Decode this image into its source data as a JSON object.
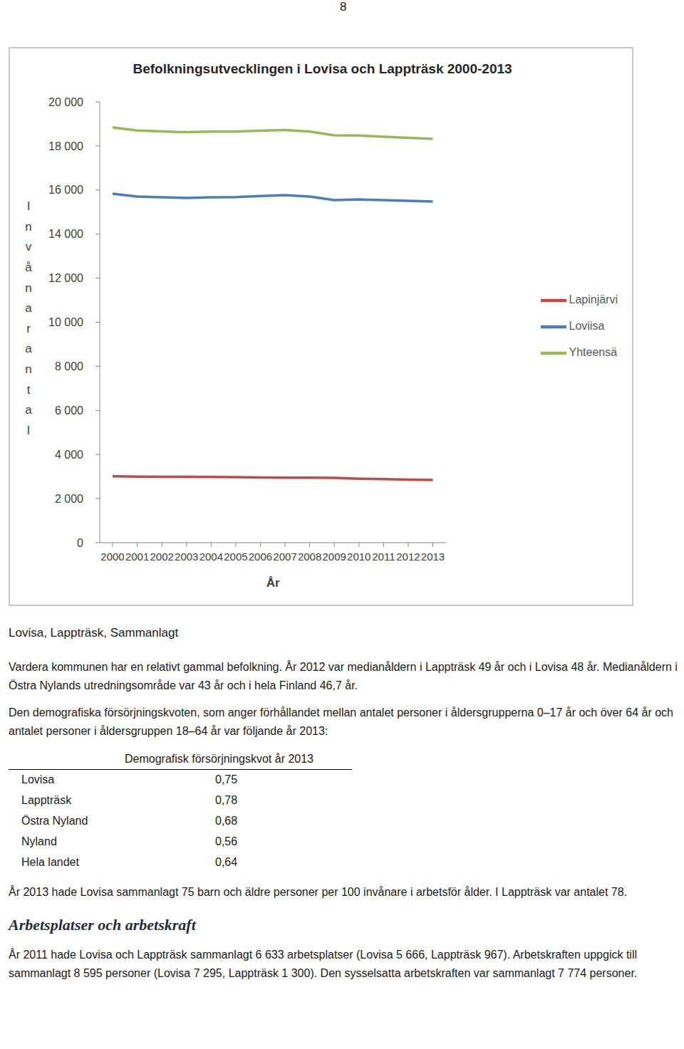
{
  "page_number": "8",
  "chart_data": {
    "type": "line",
    "title": "Befolkningsutvecklingen i Lovisa och Lappträsk 2000-2013",
    "x_label": "År",
    "y_label": "Invånarantal",
    "categories": [
      "2000",
      "2001",
      "2002",
      "2003",
      "2004",
      "2005",
      "2006",
      "2007",
      "2008",
      "2009",
      "2010",
      "2011",
      "2012",
      "2013"
    ],
    "series": [
      {
        "name": "Loviisa",
        "color": "#4a7ebb",
        "values": [
          15830,
          15700,
          15670,
          15640,
          15670,
          15680,
          15730,
          15770,
          15700,
          15540,
          15570,
          15540,
          15510,
          15480
        ]
      },
      {
        "name": "Lapinjärvi",
        "color": "#be4b48",
        "values": [
          3010,
          3000,
          2990,
          2985,
          2980,
          2970,
          2960,
          2950,
          2950,
          2940,
          2900,
          2880,
          2860,
          2840
        ]
      },
      {
        "name": "Yhteensä",
        "color": "#98b954",
        "values": [
          18840,
          18700,
          18660,
          18625,
          18650,
          18650,
          18690,
          18720,
          18650,
          18480,
          18470,
          18420,
          18370,
          18320
        ]
      }
    ],
    "ylim": [
      0,
      20000
    ],
    "yticks": [
      0,
      {
        "value": 2000,
        "label": "2 000"
      },
      {
        "value": 4000,
        "label": "4 000"
      },
      {
        "value": 6000,
        "label": "6 000"
      },
      {
        "value": 8000,
        "label": "8 000"
      },
      {
        "value": 10000,
        "label": "10 000"
      },
      {
        "value": 12000,
        "label": "12 000"
      },
      {
        "value": 14000,
        "label": "14 000"
      },
      {
        "value": 16000,
        "label": "16 000"
      },
      {
        "value": 18000,
        "label": "18 000"
      },
      {
        "value": 20000,
        "label": "20 000"
      }
    ],
    "grid": false,
    "legend": "right"
  },
  "caption": "Lovisa, Lappträsk, Sammanlagt",
  "paragraphs": [
    "Vardera kommunen har en relativt gammal befolkning. År 2012 var medianåldern i Lappträsk 49 år och i Lovisa 48 år. Medianåldern i Östra Nylands utredningsområde var 43 år och i hela Finland 46,7 år.",
    "Den demografiska försörjningskvoten, som anger förhållandet mellan antalet personer i åldersgrupperna 0–17 år och över 64 år och antalet personer i åldersgruppen 18–64 år var följande år 2013:"
  ],
  "table": {
    "header": "Demografisk försörjningskvot år 2013",
    "rows": [
      [
        "Lovisa",
        "0,75"
      ],
      [
        "Lappträsk",
        "0,78"
      ],
      [
        "Östra Nyland",
        "0,68"
      ],
      [
        "Nyland",
        "0,56"
      ],
      [
        "Hela landet",
        "0,64"
      ]
    ]
  },
  "paragraph_after_table": "År 2013 hade Lovisa sammanlagt 75 barn och äldre personer per 100 invånare i arbetsför ålder. I Lappträsk var antalet 78.",
  "heading": "Arbetsplatser och arbetskraft",
  "final_paragraph": "År 2011 hade Lovisa och Lappträsk sammanlagt 6 633 arbetsplatser (Lovisa 5 666, Lappträsk 967). Arbetskraften uppgick till sammanlagt 8 595 personer (Lovisa 7 295, Lappträsk 1 300). Den sysselsatta arbetskraften var sammanlagt 7 774 personer."
}
